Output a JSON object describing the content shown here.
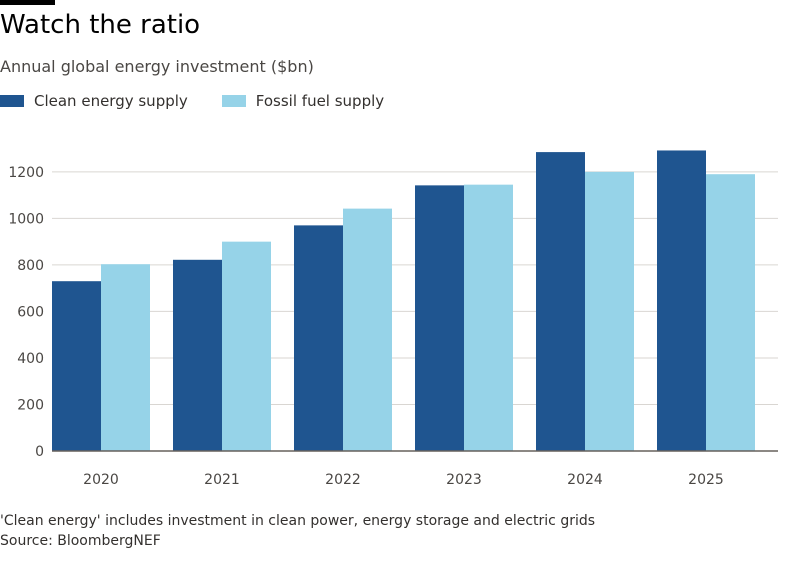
{
  "header": {
    "title": "Watch the ratio",
    "subtitle": "Annual global energy investment ($bn)"
  },
  "footer": {
    "note": "'Clean energy' includes investment in clean power, energy storage and electric grids",
    "source": "Source: BloombergNEF"
  },
  "colors": {
    "clean": "#1f5590",
    "fossil": "#96d3e8",
    "grid": "#d9d6d2",
    "axis": "#66605c"
  },
  "chart_data": {
    "type": "bar",
    "title": "Watch the ratio",
    "subtitle": "Annual global energy investment ($bn)",
    "xlabel": "",
    "ylabel": "",
    "categories": [
      "2020",
      "2021",
      "2022",
      "2023",
      "2024",
      "2025"
    ],
    "series": [
      {
        "name": "Clean energy supply",
        "values": [
          730,
          822,
          970,
          1142,
          1285,
          1292
        ]
      },
      {
        "name": "Fossil fuel supply",
        "values": [
          803,
          900,
          1042,
          1145,
          1200,
          1190
        ]
      }
    ],
    "yticks": [
      "0",
      "200",
      "400",
      "600",
      "800",
      "1000",
      "1200"
    ],
    "ylim": [
      0,
      1380
    ],
    "grid": true,
    "legend_position": "top-left"
  }
}
